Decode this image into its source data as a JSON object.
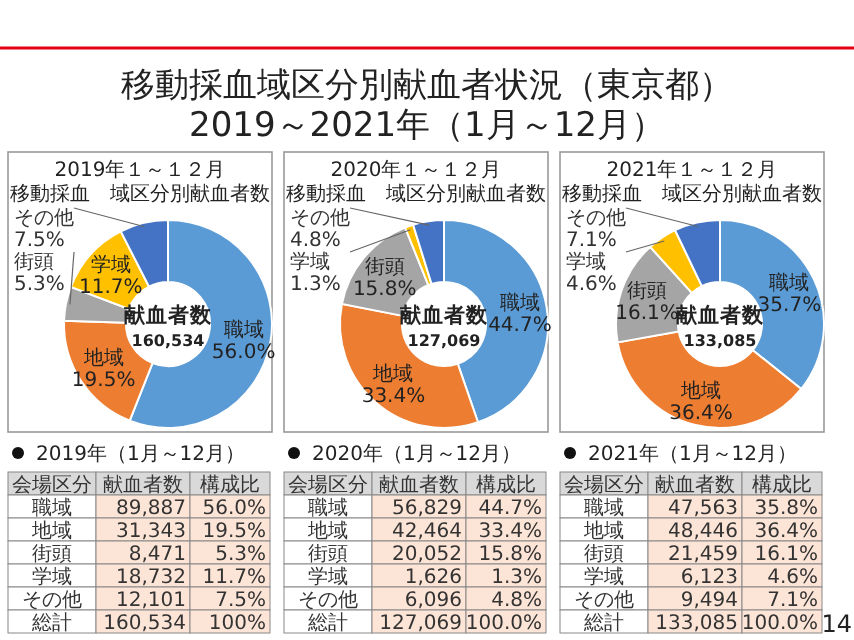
{
  "chart_data": [
    {
      "type": "other",
      "title": "移動採血域区分別献血者状況（東京都）",
      "subtitle": "2019～2021年（1月～12月）",
      "annotations": [
        "14"
      ]
    },
    {
      "type": "donut",
      "title": "2019年１～１２月",
      "subtitle": "移動採血　域区分別献血者数",
      "categories": [
        "職域",
        "地域",
        "街頭",
        "学域",
        "その他"
      ],
      "values": [
        56.0,
        19.5,
        5.3,
        11.7,
        7.5
      ],
      "colors": [
        "#5b9bd5",
        "#ed7d31",
        "#a5a5a5",
        "#ffc000",
        "#4472c4"
      ],
      "value_labels": [
        "56.0%",
        "19.5%",
        "5.3%",
        "11.7%",
        "7.5%"
      ],
      "annotations": [
        "献血者数",
        "160,534"
      ]
    },
    {
      "type": "donut",
      "title": "2020年１～１２月",
      "subtitle": "移動採血　域区分別献血者数",
      "categories": [
        "職域",
        "地域",
        "街頭",
        "学域",
        "その他"
      ],
      "values": [
        44.7,
        33.4,
        15.8,
        1.3,
        4.8
      ],
      "colors": [
        "#5b9bd5",
        "#ed7d31",
        "#a5a5a5",
        "#ffc000",
        "#4472c4"
      ],
      "value_labels": [
        "44.7%",
        "33.4%",
        "15.8%",
        "1.3%",
        "4.8%"
      ],
      "annotations": [
        "献血者数",
        "127,069"
      ]
    },
    {
      "type": "donut",
      "title": "2021年１～１２月",
      "subtitle": "移動採血　域区分別献血者数",
      "categories": [
        "職域",
        "地域",
        "街頭",
        "学域",
        "その他"
      ],
      "values": [
        35.7,
        36.4,
        16.1,
        4.6,
        7.1
      ],
      "colors": [
        "#5b9bd5",
        "#ed7d31",
        "#a5a5a5",
        "#ffc000",
        "#4472c4"
      ],
      "value_labels": [
        "35.7%",
        "36.4%",
        "16.1%",
        "4.6%",
        "7.1%"
      ],
      "annotations": [
        "献血者数",
        "133,085"
      ]
    },
    {
      "type": "other",
      "title": "2019年（1月～12月）",
      "xlabel": "会場区分",
      "categories": [
        "職域",
        "地域",
        "街頭",
        "学域",
        "その他",
        "総計"
      ],
      "series": [
        {
          "name": "献血者数",
          "values": [
            89887,
            31343,
            8471,
            18732,
            12101,
            160534
          ],
          "value_labels": [
            "89,887",
            "31,343",
            "8,471",
            "18,732",
            "12,101",
            "160,534"
          ]
        },
        {
          "name": "構成比",
          "values": [
            56.0,
            19.5,
            5.3,
            11.7,
            7.5,
            100
          ],
          "value_labels": [
            "56.0%",
            "19.5%",
            "5.3%",
            "11.7%",
            "7.5%",
            "100%"
          ]
        }
      ]
    },
    {
      "type": "other",
      "title": "2020年（1月～12月）",
      "xlabel": "会場区分",
      "categories": [
        "職域",
        "地域",
        "街頭",
        "学域",
        "その他",
        "総計"
      ],
      "series": [
        {
          "name": "献血者数",
          "values": [
            56829,
            42464,
            20052,
            1626,
            6096,
            127069
          ],
          "value_labels": [
            "56,829",
            "42,464",
            "20,052",
            "1,626",
            "6,096",
            "127,069"
          ]
        },
        {
          "name": "構成比",
          "values": [
            44.7,
            33.4,
            15.8,
            1.3,
            4.8,
            100.0
          ],
          "value_labels": [
            "44.7%",
            "33.4%",
            "15.8%",
            "1.3%",
            "4.8%",
            "100.0%"
          ]
        }
      ]
    },
    {
      "type": "other",
      "title": "2021年（1月～12月）",
      "xlabel": "会場区分",
      "categories": [
        "職域",
        "地域",
        "街頭",
        "学域",
        "その他",
        "総計"
      ],
      "series": [
        {
          "name": "献血者数",
          "values": [
            47563,
            48446,
            21459,
            6123,
            9494,
            133085
          ],
          "value_labels": [
            "47,563",
            "48,446",
            "21,459",
            "6,123",
            "9,494",
            "133,085"
          ]
        },
        {
          "name": "構成比",
          "values": [
            35.8,
            36.4,
            16.1,
            4.6,
            7.1,
            100.0
          ],
          "value_labels": [
            "35.8%",
            "36.4%",
            "16.1%",
            "4.6%",
            "7.1%",
            "100.0%"
          ]
        }
      ]
    }
  ]
}
